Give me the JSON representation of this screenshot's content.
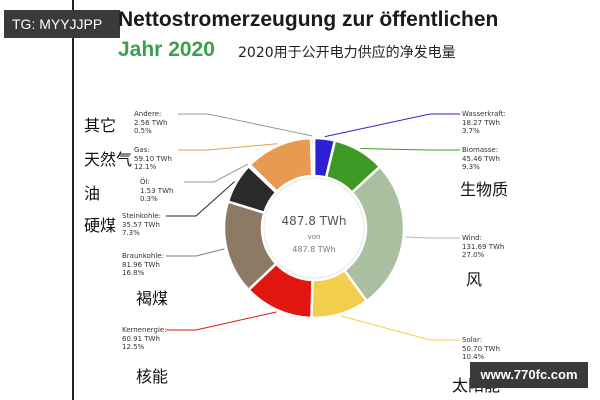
{
  "tag": "TG: MYYJJPP",
  "title": "Nettostromerzeugung zur öffentlichen",
  "year_label": "Jahr 2020",
  "subtitle": "2020用于公开电力供应的净发电量",
  "watermark": "www.770fc.com",
  "chart_data": {
    "type": "pie",
    "title": "Nettostromerzeugung zur öffentlichen Jahr 2020",
    "subtitle": "2020用于公开电力供应的净发电量",
    "total": "487.8 TWh",
    "total_of": "von",
    "total_repeat": "487.8 TWh",
    "slices": [
      {
        "name": "Wasserkraft",
        "zh": "",
        "twh": 18.27,
        "twh_text": "18.27 TWh",
        "percent_text": "3.7%",
        "value": 18.27,
        "color": "#2d1fd6"
      },
      {
        "name": "Biomasse",
        "zh": "生物质",
        "twh": 45.46,
        "twh_text": "45.46 TWh",
        "percent_text": "9.3%",
        "value": 45.46,
        "color": "#3e9a24"
      },
      {
        "name": "Wind",
        "zh": "风",
        "twh": 131.69,
        "twh_text": "131.69 TWh",
        "percent_text": "27.0%",
        "value": 131.69,
        "color": "#a9bfa0"
      },
      {
        "name": "Solar",
        "zh": "太阳能",
        "twh": 50.7,
        "twh_text": "50.70 TWh",
        "percent_text": "10.4%",
        "value": 50.7,
        "color": "#f3cd4e"
      },
      {
        "name": "Kernenergie",
        "zh": "核能",
        "twh": 60.91,
        "twh_text": "60.91 TWh",
        "percent_text": "12.5%",
        "value": 60.91,
        "color": "#e0160f"
      },
      {
        "name": "Braunkohle",
        "zh": "褐煤",
        "twh": 81.96,
        "twh_text": "81.96 TWh",
        "percent_text": "16.8%",
        "value": 81.96,
        "color": "#8c7a64"
      },
      {
        "name": "Steinkohle",
        "zh": "硬煤",
        "twh": 35.57,
        "twh_text": "35.57 TWh",
        "percent_text": "7.3%",
        "value": 35.57,
        "color": "#2a2a2a"
      },
      {
        "name": "Öl",
        "zh": "油",
        "twh": 1.53,
        "twh_text": "1.53 TWh",
        "percent_text": "0.3%",
        "value": 1.53,
        "color": "#9a9a9a"
      },
      {
        "name": "Gas",
        "zh": "天然气",
        "twh": 59.1,
        "twh_text": "59.10 TWh",
        "percent_text": "12.1%",
        "value": 59.1,
        "color": "#e89a52"
      },
      {
        "name": "Andere",
        "zh": "其它",
        "twh": 2.56,
        "twh_text": "2.56 TWh",
        "percent_text": "0.5%",
        "value": 2.56,
        "color": "#c8c8c8"
      }
    ]
  }
}
